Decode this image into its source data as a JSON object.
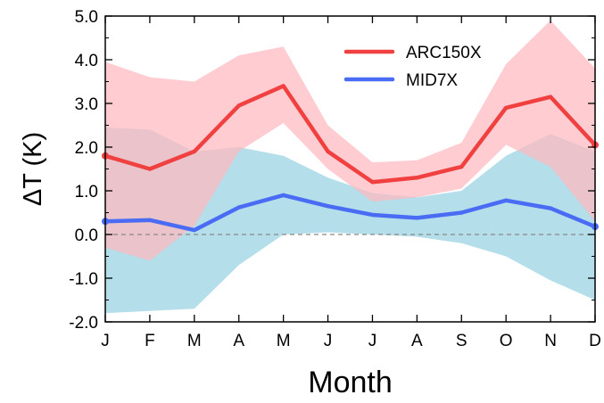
{
  "chart_data": {
    "type": "line",
    "categories": [
      "J",
      "F",
      "M",
      "A",
      "M",
      "J",
      "J",
      "A",
      "S",
      "O",
      "N",
      "D"
    ],
    "xlabel": "Month",
    "ylabel": "ΔT (K)",
    "ylim": [
      -2.0,
      5.0
    ],
    "yticks": [
      -2.0,
      -1.0,
      0.0,
      1.0,
      2.0,
      3.0,
      4.0,
      5.0
    ],
    "ytick_labels": [
      "-2.0",
      "-1.0",
      "0.0",
      "1.0",
      "2.0",
      "3.0",
      "4.0",
      "5.0"
    ],
    "zero_line": "dashed",
    "grid": false,
    "legend": "top-right",
    "series": [
      {
        "name": "ARC150X",
        "color": "#f04040",
        "band_color": "#ffb8bf",
        "values": [
          1.8,
          1.5,
          1.9,
          2.95,
          3.4,
          1.9,
          1.2,
          1.3,
          1.55,
          2.9,
          3.15,
          2.05
        ],
        "upper": [
          3.95,
          3.6,
          3.5,
          4.1,
          4.3,
          2.5,
          1.65,
          1.7,
          2.1,
          3.9,
          4.9,
          3.8
        ],
        "lower": [
          -0.3,
          -0.6,
          0.2,
          1.9,
          2.55,
          1.5,
          0.75,
          0.85,
          1.05,
          2.05,
          1.55,
          0.3
        ]
      },
      {
        "name": "MID7X",
        "color": "#4a6cf4",
        "band_color": "#a6d8e6",
        "values": [
          0.3,
          0.33,
          0.1,
          0.62,
          0.9,
          0.65,
          0.45,
          0.38,
          0.5,
          0.78,
          0.6,
          0.18
        ],
        "upper": [
          2.45,
          2.4,
          1.9,
          2.0,
          1.8,
          1.3,
          0.95,
          0.85,
          1.0,
          1.8,
          2.3,
          1.9
        ],
        "lower": [
          -1.8,
          -1.75,
          -1.7,
          -0.7,
          0.0,
          0.05,
          0.0,
          -0.05,
          -0.2,
          -0.5,
          -1.05,
          -1.5
        ]
      }
    ]
  }
}
